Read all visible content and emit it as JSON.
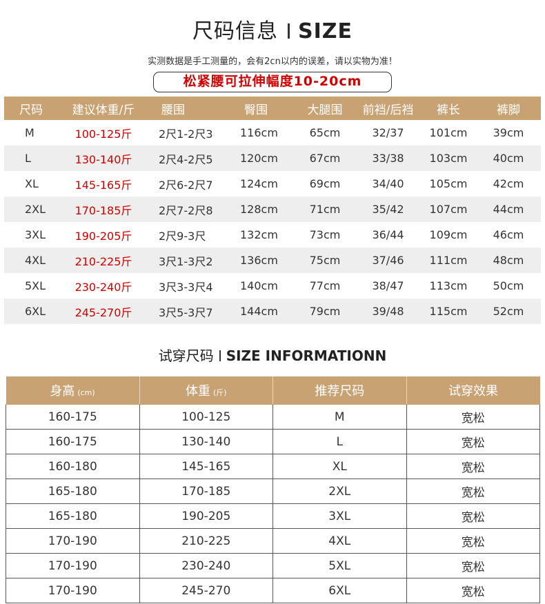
{
  "header": {
    "title_cn": "尺码信息",
    "title_en": "SIZE",
    "note": "实测数据是手工测量的，会有2cn以内的误差，请以实物为准！",
    "elastic": "松紧腰可拉伸幅度10-20cm"
  },
  "size_table": {
    "columns": [
      "尺码",
      "建议体重/斤",
      "腰围",
      "臀围",
      "大腿围",
      "前裆/后裆",
      "裤长",
      "裤脚"
    ],
    "rows": [
      [
        "M",
        "100-125斤",
        "2尺1-2尺3",
        "116cm",
        "65cm",
        "32/37",
        "101cm",
        "39cm"
      ],
      [
        "L",
        "130-140斤",
        "2尺4-2尺5",
        "120cm",
        "67cm",
        "33/38",
        "103cm",
        "40cm"
      ],
      [
        "XL",
        "145-165斤",
        "2尺6-2尺7",
        "124cm",
        "69cm",
        "34/40",
        "105cm",
        "42cm"
      ],
      [
        "2XL",
        "170-185斤",
        "2尺7-2尺8",
        "128cm",
        "71cm",
        "35/42",
        "107cm",
        "44cm"
      ],
      [
        "3XL",
        "190-205斤",
        "2尺9-3尺",
        "132cm",
        "73cm",
        "36/44",
        "109cm",
        "46cm"
      ],
      [
        "4XL",
        "210-225斤",
        "3尺1-3尺2",
        "136cm",
        "75cm",
        "37/46",
        "111cm",
        "48cm"
      ],
      [
        "5XL",
        "230-240斤",
        "3尺3-3尺4",
        "140cm",
        "77cm",
        "38/47",
        "113cm",
        "50cm"
      ],
      [
        "6XL",
        "245-270斤",
        "3尺5-3尺7",
        "144cm",
        "79cm",
        "39/48",
        "115cm",
        "52cm"
      ]
    ]
  },
  "trial": {
    "title_cn": "试穿尺码",
    "title_en": "SIZE INFORMATIONN",
    "columns": [
      {
        "label": "身高",
        "unit": "(cm)"
      },
      {
        "label": "体重",
        "unit": "(斤)"
      },
      {
        "label": "推荐尺码",
        "unit": ""
      },
      {
        "label": "试穿效果",
        "unit": ""
      }
    ],
    "rows": [
      [
        "160-175",
        "100-125",
        "M",
        "宽松"
      ],
      [
        "160-175",
        "130-140",
        "L",
        "宽松"
      ],
      [
        "160-180",
        "145-165",
        "XL",
        "宽松"
      ],
      [
        "165-180",
        "170-185",
        "2XL",
        "宽松"
      ],
      [
        "165-180",
        "190-205",
        "3XL",
        "宽松"
      ],
      [
        "170-190",
        "210-225",
        "4XL",
        "宽松"
      ],
      [
        "170-190",
        "230-240",
        "5XL",
        "宽松"
      ],
      [
        "170-190",
        "245-270",
        "6XL",
        "宽松"
      ]
    ]
  },
  "colors": {
    "header_bg": "#c9a274",
    "weight_text": "#d00000",
    "alt_row": "#eeeeee"
  }
}
